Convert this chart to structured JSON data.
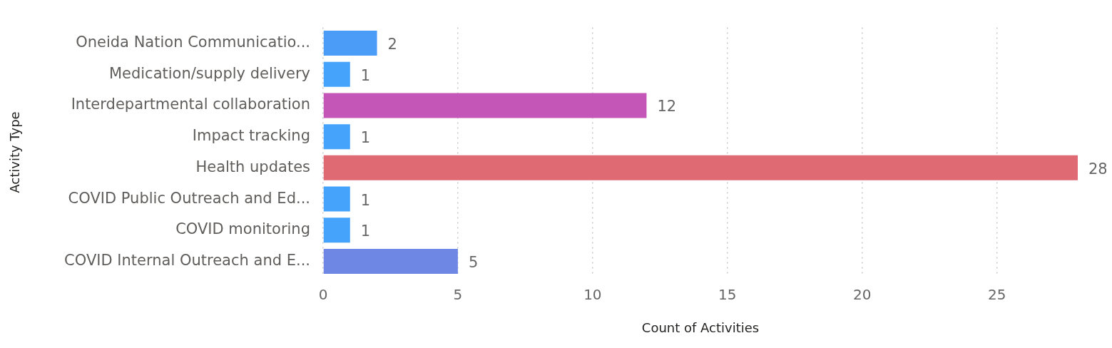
{
  "chart_data": {
    "type": "bar",
    "orientation": "horizontal",
    "xlabel": "Count of Activities",
    "ylabel": "Activity Type",
    "categories": [
      "Oneida Nation Communicatio...",
      "Medication/supply delivery",
      "Interdepartmental collaboration",
      "Impact tracking",
      "Health updates",
      "COVID Public Outreach and Ed...",
      "COVID monitoring",
      "COVID Internal Outreach and E..."
    ],
    "values": [
      2,
      1,
      12,
      1,
      28,
      1,
      1,
      5
    ],
    "colors": [
      "#4a9cf6",
      "#45a3fb",
      "#c356b6",
      "#45a3fb",
      "#df6a73",
      "#45a3fb",
      "#45a3fb",
      "#6f87e4"
    ],
    "xlim": [
      0,
      28
    ],
    "xticks": [
      0,
      5,
      10,
      15,
      20,
      25
    ],
    "grid": "x",
    "legend": false,
    "data_labels": true
  }
}
